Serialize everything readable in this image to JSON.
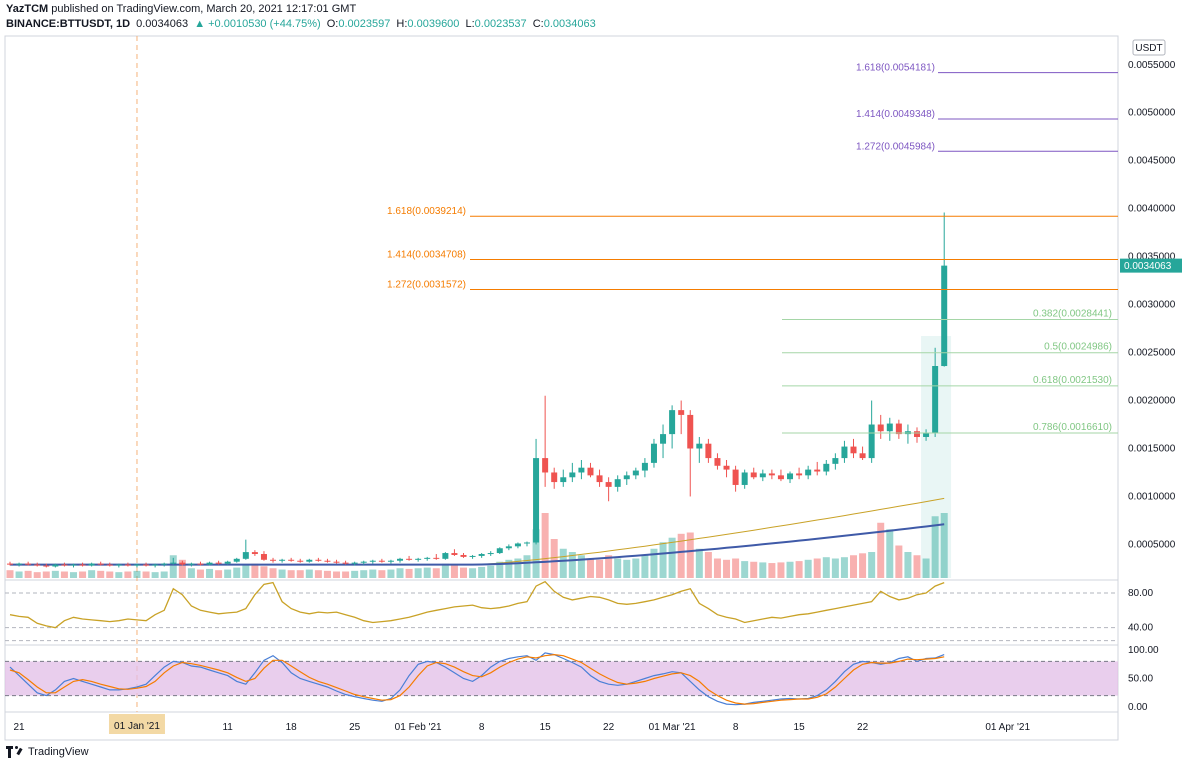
{
  "header": {
    "line1_author": "YazTCM",
    "line1_rest": "published on TradingView.com, March 20, 2021 12:17:01 GMT",
    "symbol": "BINANCE:BTTUSDT, 1D",
    "last": "0.0034063",
    "change": "▲ +0.0010530 (+44.75%)",
    "o_label": "O:",
    "o": "0.0023597",
    "h_label": "H:",
    "h": "0.0039600",
    "l_label": "L:",
    "l": "0.0023537",
    "c_label": "C:",
    "c": "0.0034063"
  },
  "footer": {
    "brand": "TradingView"
  },
  "colors": {
    "up": "#26a69a",
    "down": "#ef5350",
    "fib_ext": "#f57c00",
    "fib_ext2": "#7e57c2",
    "fib_ret": "#a5d6a7",
    "ma_fast": "#c9a227",
    "ma_slow": "#3f5aa8",
    "rsi": "#c9a227",
    "stoch_k": "#4a7fd6",
    "stoch_d": "#f57c00",
    "stoch_band": "#e1bee7"
  },
  "chart_data": {
    "type": "candlestick",
    "price_unit_label": "USDT",
    "x_ticks": [
      "21",
      "01 Jan '21",
      "11",
      "18",
      "25",
      "01 Feb '21",
      "8",
      "15",
      "22",
      "01 Mar '21",
      "8",
      "15",
      "22",
      "01 Apr '21"
    ],
    "x_cursor_label": "01 Jan '21",
    "y_ticks": [
      "0.0055000",
      "0.0050000",
      "0.0045000",
      "0.0040000",
      "0.0035000",
      "0.0030000",
      "0.0025000",
      "0.0020000",
      "0.0015000",
      "0.0010000",
      "0.0005000"
    ],
    "ylim": [
      0.00015,
      0.0058
    ],
    "last_price_label": "0.0034063",
    "fib_extension_upper": [
      {
        "label": "1.618(0.0054181)",
        "value": 0.0054181
      },
      {
        "label": "1.414(0.0049348)",
        "value": 0.0049348
      },
      {
        "label": "1.272(0.0045984)",
        "value": 0.0045984
      }
    ],
    "fib_extension_lower": [
      {
        "label": "1.618(0.0039214)",
        "value": 0.0039214
      },
      {
        "label": "1.414(0.0034708)",
        "value": 0.0034708
      },
      {
        "label": "1.272(0.0031572)",
        "value": 0.0031572
      }
    ],
    "fib_retracement": [
      {
        "label": "0.382(0.0028441)",
        "value": 0.0028441
      },
      {
        "label": "0.5(0.0024986)",
        "value": 0.0024986
      },
      {
        "label": "0.618(0.0021530)",
        "value": 0.002153
      },
      {
        "label": "0.786(0.0016610)",
        "value": 0.001661
      }
    ],
    "candles": [
      {
        "o": 0.0003,
        "h": 0.00032,
        "l": 0.00028,
        "c": 0.00029
      },
      {
        "o": 0.00029,
        "h": 0.00031,
        "l": 0.00027,
        "c": 0.0003
      },
      {
        "o": 0.0003,
        "h": 0.00032,
        "l": 0.00028,
        "c": 0.00029
      },
      {
        "o": 0.00029,
        "h": 0.00031,
        "l": 0.00027,
        "c": 0.00028
      },
      {
        "o": 0.00028,
        "h": 0.0003,
        "l": 0.00026,
        "c": 0.00027
      },
      {
        "o": 0.00027,
        "h": 0.0003,
        "l": 0.00026,
        "c": 0.00029
      },
      {
        "o": 0.00029,
        "h": 0.00031,
        "l": 0.00027,
        "c": 0.00028
      },
      {
        "o": 0.00028,
        "h": 0.0003,
        "l": 0.00026,
        "c": 0.00029
      },
      {
        "o": 0.00029,
        "h": 0.00031,
        "l": 0.00027,
        "c": 0.00028
      },
      {
        "o": 0.00028,
        "h": 0.00031,
        "l": 0.00027,
        "c": 0.0003
      },
      {
        "o": 0.0003,
        "h": 0.00032,
        "l": 0.00028,
        "c": 0.00029
      },
      {
        "o": 0.00029,
        "h": 0.00031,
        "l": 0.00027,
        "c": 0.00028
      },
      {
        "o": 0.00028,
        "h": 0.0003,
        "l": 0.00026,
        "c": 0.00029
      },
      {
        "o": 0.00029,
        "h": 0.00031,
        "l": 0.00027,
        "c": 0.00028
      },
      {
        "o": 0.00028,
        "h": 0.0003,
        "l": 0.00026,
        "c": 0.00029
      },
      {
        "o": 0.00029,
        "h": 0.00031,
        "l": 0.00027,
        "c": 0.00028
      },
      {
        "o": 0.00028,
        "h": 0.0003,
        "l": 0.00026,
        "c": 0.00029
      },
      {
        "o": 0.00029,
        "h": 0.00031,
        "l": 0.00027,
        "c": 0.0003
      },
      {
        "o": 0.0003,
        "h": 0.00036,
        "l": 0.00029,
        "c": 0.00031
      },
      {
        "o": 0.00031,
        "h": 0.00033,
        "l": 0.00028,
        "c": 0.00029
      },
      {
        "o": 0.00029,
        "h": 0.00031,
        "l": 0.00027,
        "c": 0.0003
      },
      {
        "o": 0.0003,
        "h": 0.00032,
        "l": 0.00028,
        "c": 0.00029
      },
      {
        "o": 0.00029,
        "h": 0.00032,
        "l": 0.00028,
        "c": 0.00031
      },
      {
        "o": 0.00031,
        "h": 0.00033,
        "l": 0.00029,
        "c": 0.0003
      },
      {
        "o": 0.0003,
        "h": 0.00033,
        "l": 0.00029,
        "c": 0.00032
      },
      {
        "o": 0.00032,
        "h": 0.00036,
        "l": 0.00031,
        "c": 0.00035
      },
      {
        "o": 0.00035,
        "h": 0.00055,
        "l": 0.00034,
        "c": 0.00042
      },
      {
        "o": 0.00042,
        "h": 0.00044,
        "l": 0.00038,
        "c": 0.0004
      },
      {
        "o": 0.0004,
        "h": 0.00043,
        "l": 0.00033,
        "c": 0.00034
      },
      {
        "o": 0.00034,
        "h": 0.00036,
        "l": 0.00031,
        "c": 0.00033
      },
      {
        "o": 0.00033,
        "h": 0.00035,
        "l": 0.00031,
        "c": 0.00034
      },
      {
        "o": 0.00034,
        "h": 0.00036,
        "l": 0.00032,
        "c": 0.00033
      },
      {
        "o": 0.00033,
        "h": 0.00035,
        "l": 0.00031,
        "c": 0.00032
      },
      {
        "o": 0.00032,
        "h": 0.00035,
        "l": 0.00031,
        "c": 0.00034
      },
      {
        "o": 0.00034,
        "h": 0.00036,
        "l": 0.00032,
        "c": 0.00033
      },
      {
        "o": 0.00033,
        "h": 0.00035,
        "l": 0.00031,
        "c": 0.00032
      },
      {
        "o": 0.00032,
        "h": 0.00034,
        "l": 0.0003,
        "c": 0.00031
      },
      {
        "o": 0.00031,
        "h": 0.00033,
        "l": 0.00029,
        "c": 0.0003
      },
      {
        "o": 0.0003,
        "h": 0.00032,
        "l": 0.00028,
        "c": 0.00031
      },
      {
        "o": 0.00031,
        "h": 0.00033,
        "l": 0.00029,
        "c": 0.00032
      },
      {
        "o": 0.00032,
        "h": 0.00034,
        "l": 0.0003,
        "c": 0.00033
      },
      {
        "o": 0.00033,
        "h": 0.00035,
        "l": 0.00031,
        "c": 0.00032
      },
      {
        "o": 0.00032,
        "h": 0.00034,
        "l": 0.0003,
        "c": 0.00033
      },
      {
        "o": 0.00033,
        "h": 0.00036,
        "l": 0.00031,
        "c": 0.00035
      },
      {
        "o": 0.00035,
        "h": 0.00038,
        "l": 0.00033,
        "c": 0.00034
      },
      {
        "o": 0.00034,
        "h": 0.00036,
        "l": 0.00032,
        "c": 0.00035
      },
      {
        "o": 0.00035,
        "h": 0.00037,
        "l": 0.00033,
        "c": 0.00036
      },
      {
        "o": 0.00036,
        "h": 0.0004,
        "l": 0.00034,
        "c": 0.00035
      },
      {
        "o": 0.00035,
        "h": 0.00042,
        "l": 0.00034,
        "c": 0.00041
      },
      {
        "o": 0.00041,
        "h": 0.00045,
        "l": 0.00038,
        "c": 0.00039
      },
      {
        "o": 0.00039,
        "h": 0.00041,
        "l": 0.00036,
        "c": 0.00037
      },
      {
        "o": 0.00037,
        "h": 0.00039,
        "l": 0.00035,
        "c": 0.00038
      },
      {
        "o": 0.00038,
        "h": 0.00041,
        "l": 0.00036,
        "c": 0.0004
      },
      {
        "o": 0.0004,
        "h": 0.00043,
        "l": 0.00038,
        "c": 0.00041
      },
      {
        "o": 0.00041,
        "h": 0.00047,
        "l": 0.0004,
        "c": 0.00046
      },
      {
        "o": 0.00046,
        "h": 0.0005,
        "l": 0.00044,
        "c": 0.00048
      },
      {
        "o": 0.00048,
        "h": 0.00052,
        "l": 0.00046,
        "c": 0.00051
      },
      {
        "o": 0.00051,
        "h": 0.00053,
        "l": 0.00048,
        "c": 0.00052
      },
      {
        "o": 0.00052,
        "h": 0.0016,
        "l": 0.0005,
        "c": 0.0014
      },
      {
        "o": 0.0014,
        "h": 0.00205,
        "l": 0.0011,
        "c": 0.00125
      },
      {
        "o": 0.00125,
        "h": 0.0013,
        "l": 0.00108,
        "c": 0.00115
      },
      {
        "o": 0.00115,
        "h": 0.00128,
        "l": 0.0011,
        "c": 0.0012
      },
      {
        "o": 0.0012,
        "h": 0.00135,
        "l": 0.00115,
        "c": 0.00125
      },
      {
        "o": 0.00125,
        "h": 0.00138,
        "l": 0.00118,
        "c": 0.0013
      },
      {
        "o": 0.0013,
        "h": 0.00135,
        "l": 0.0012,
        "c": 0.00122
      },
      {
        "o": 0.00122,
        "h": 0.00128,
        "l": 0.0011,
        "c": 0.00115
      },
      {
        "o": 0.00115,
        "h": 0.0012,
        "l": 0.00095,
        "c": 0.0011
      },
      {
        "o": 0.0011,
        "h": 0.00122,
        "l": 0.00105,
        "c": 0.00118
      },
      {
        "o": 0.00118,
        "h": 0.00126,
        "l": 0.00112,
        "c": 0.00122
      },
      {
        "o": 0.00122,
        "h": 0.0013,
        "l": 0.00118,
        "c": 0.00127
      },
      {
        "o": 0.00127,
        "h": 0.0014,
        "l": 0.0012,
        "c": 0.00135
      },
      {
        "o": 0.00135,
        "h": 0.0016,
        "l": 0.0013,
        "c": 0.00155
      },
      {
        "o": 0.00155,
        "h": 0.00175,
        "l": 0.0014,
        "c": 0.00165
      },
      {
        "o": 0.00165,
        "h": 0.00195,
        "l": 0.0015,
        "c": 0.0019
      },
      {
        "o": 0.0019,
        "h": 0.002,
        "l": 0.00165,
        "c": 0.00185
      },
      {
        "o": 0.00185,
        "h": 0.0019,
        "l": 0.001,
        "c": 0.0015
      },
      {
        "o": 0.0015,
        "h": 0.00162,
        "l": 0.00135,
        "c": 0.00155
      },
      {
        "o": 0.00155,
        "h": 0.0016,
        "l": 0.00135,
        "c": 0.0014
      },
      {
        "o": 0.0014,
        "h": 0.00145,
        "l": 0.00128,
        "c": 0.00132
      },
      {
        "o": 0.00132,
        "h": 0.00138,
        "l": 0.0012,
        "c": 0.00128
      },
      {
        "o": 0.00128,
        "h": 0.00132,
        "l": 0.00105,
        "c": 0.00112
      },
      {
        "o": 0.00112,
        "h": 0.00128,
        "l": 0.00108,
        "c": 0.00125
      },
      {
        "o": 0.00125,
        "h": 0.0013,
        "l": 0.00118,
        "c": 0.0012
      },
      {
        "o": 0.0012,
        "h": 0.00128,
        "l": 0.00116,
        "c": 0.00124
      },
      {
        "o": 0.00124,
        "h": 0.00128,
        "l": 0.00118,
        "c": 0.00122
      },
      {
        "o": 0.00122,
        "h": 0.00128,
        "l": 0.00116,
        "c": 0.00118
      },
      {
        "o": 0.00118,
        "h": 0.00126,
        "l": 0.00114,
        "c": 0.00124
      },
      {
        "o": 0.00124,
        "h": 0.0013,
        "l": 0.00118,
        "c": 0.00122
      },
      {
        "o": 0.00122,
        "h": 0.00132,
        "l": 0.00118,
        "c": 0.00128
      },
      {
        "o": 0.00128,
        "h": 0.00136,
        "l": 0.00122,
        "c": 0.00126
      },
      {
        "o": 0.00126,
        "h": 0.00138,
        "l": 0.00122,
        "c": 0.00134
      },
      {
        "o": 0.00134,
        "h": 0.00145,
        "l": 0.00128,
        "c": 0.0014
      },
      {
        "o": 0.0014,
        "h": 0.00158,
        "l": 0.00135,
        "c": 0.00152
      },
      {
        "o": 0.00152,
        "h": 0.0016,
        "l": 0.0014,
        "c": 0.00145
      },
      {
        "o": 0.00145,
        "h": 0.00152,
        "l": 0.00138,
        "c": 0.0014
      },
      {
        "o": 0.0014,
        "h": 0.002,
        "l": 0.00135,
        "c": 0.00175
      },
      {
        "o": 0.00175,
        "h": 0.00185,
        "l": 0.0016,
        "c": 0.00168
      },
      {
        "o": 0.00168,
        "h": 0.00182,
        "l": 0.00158,
        "c": 0.00176
      },
      {
        "o": 0.00176,
        "h": 0.0018,
        "l": 0.0016,
        "c": 0.00165
      },
      {
        "o": 0.00165,
        "h": 0.00175,
        "l": 0.00155,
        "c": 0.00168
      },
      {
        "o": 0.00168,
        "h": 0.00172,
        "l": 0.00156,
        "c": 0.00162
      },
      {
        "o": 0.00162,
        "h": 0.0017,
        "l": 0.00158,
        "c": 0.00166
      },
      {
        "o": 0.00166,
        "h": 0.00255,
        "l": 0.00162,
        "c": 0.00236
      },
      {
        "o": 0.0023597,
        "h": 0.00396,
        "l": 0.0023537,
        "c": 0.0034063
      }
    ],
    "volume": [
      0.12,
      0.1,
      0.11,
      0.09,
      0.1,
      0.11,
      0.1,
      0.09,
      0.1,
      0.12,
      0.11,
      0.1,
      0.09,
      0.1,
      0.11,
      0.1,
      0.09,
      0.1,
      0.35,
      0.28,
      0.15,
      0.13,
      0.14,
      0.12,
      0.13,
      0.16,
      0.2,
      0.22,
      0.18,
      0.15,
      0.13,
      0.12,
      0.12,
      0.13,
      0.12,
      0.11,
      0.1,
      0.1,
      0.11,
      0.12,
      0.13,
      0.12,
      0.13,
      0.15,
      0.14,
      0.15,
      0.16,
      0.15,
      0.22,
      0.2,
      0.16,
      0.15,
      0.17,
      0.19,
      0.25,
      0.28,
      0.3,
      0.35,
      0.75,
      1.0,
      0.6,
      0.45,
      0.4,
      0.35,
      0.3,
      0.28,
      0.35,
      0.3,
      0.28,
      0.3,
      0.35,
      0.45,
      0.55,
      0.62,
      0.68,
      0.7,
      0.45,
      0.4,
      0.3,
      0.28,
      0.3,
      0.26,
      0.25,
      0.24,
      0.23,
      0.24,
      0.25,
      0.26,
      0.28,
      0.3,
      0.32,
      0.3,
      0.32,
      0.35,
      0.38,
      0.4,
      0.85,
      0.75,
      0.5,
      0.4,
      0.35,
      0.3,
      0.95,
      1.0
    ],
    "ma_fast_end": 0.00098,
    "ma_slow_end": 0.00071,
    "rsi_ticks": [
      "80.00",
      "40.00"
    ],
    "rsi_ylim": [
      20,
      95
    ],
    "rsi": [
      55,
      53,
      52,
      45,
      42,
      40,
      48,
      52,
      50,
      49,
      48,
      47,
      48,
      50,
      49,
      48,
      55,
      60,
      85,
      78,
      65,
      60,
      58,
      56,
      57,
      58,
      62,
      78,
      90,
      92,
      70,
      62,
      58,
      56,
      58,
      57,
      58,
      55,
      52,
      48,
      46,
      47,
      48,
      50,
      52,
      55,
      58,
      60,
      62,
      64,
      65,
      66,
      63,
      62,
      63,
      65,
      68,
      70,
      88,
      93,
      82,
      75,
      72,
      74,
      76,
      75,
      72,
      68,
      67,
      68,
      70,
      72,
      75,
      78,
      82,
      85,
      68,
      62,
      55,
      52,
      50,
      46,
      48,
      50,
      52,
      51,
      53,
      55,
      56,
      58,
      60,
      62,
      64,
      66,
      68,
      70,
      82,
      76,
      72,
      74,
      78,
      80,
      88,
      92
    ],
    "stoch_ticks": [
      "100.00",
      "50.00",
      "0.00"
    ],
    "stoch_ylim": [
      0,
      100
    ],
    "stoch_k": [
      70,
      55,
      40,
      25,
      20,
      30,
      45,
      50,
      45,
      40,
      35,
      30,
      30,
      32,
      35,
      40,
      55,
      70,
      80,
      78,
      72,
      70,
      65,
      60,
      55,
      45,
      40,
      60,
      82,
      90,
      78,
      60,
      50,
      45,
      40,
      35,
      28,
      22,
      18,
      15,
      12,
      10,
      15,
      30,
      55,
      75,
      80,
      78,
      70,
      60,
      50,
      45,
      55,
      70,
      80,
      85,
      88,
      90,
      82,
      95,
      92,
      85,
      78,
      70,
      55,
      45,
      40,
      38,
      40,
      45,
      50,
      55,
      58,
      62,
      60,
      45,
      30,
      18,
      10,
      5,
      4,
      5,
      8,
      10,
      12,
      14,
      15,
      14,
      15,
      20,
      30,
      45,
      62,
      75,
      80,
      78,
      75,
      78,
      85,
      88,
      80,
      85,
      86,
      92
    ],
    "stoch_d": [
      65,
      60,
      48,
      35,
      25,
      25,
      35,
      45,
      48,
      45,
      40,
      36,
      32,
      31,
      33,
      36,
      45,
      60,
      72,
      78,
      76,
      73,
      69,
      65,
      60,
      52,
      45,
      50,
      68,
      82,
      82,
      72,
      62,
      52,
      45,
      40,
      34,
      28,
      22,
      18,
      15,
      12,
      13,
      20,
      35,
      55,
      72,
      78,
      76,
      70,
      62,
      55,
      53,
      60,
      70,
      78,
      84,
      88,
      86,
      90,
      92,
      90,
      84,
      78,
      68,
      58,
      50,
      43,
      40,
      42,
      45,
      50,
      54,
      58,
      60,
      55,
      45,
      30,
      20,
      12,
      7,
      5,
      6,
      8,
      10,
      12,
      13,
      14,
      14,
      17,
      23,
      35,
      50,
      65,
      75,
      78,
      77,
      77,
      80,
      84,
      83,
      84,
      85,
      88
    ]
  }
}
